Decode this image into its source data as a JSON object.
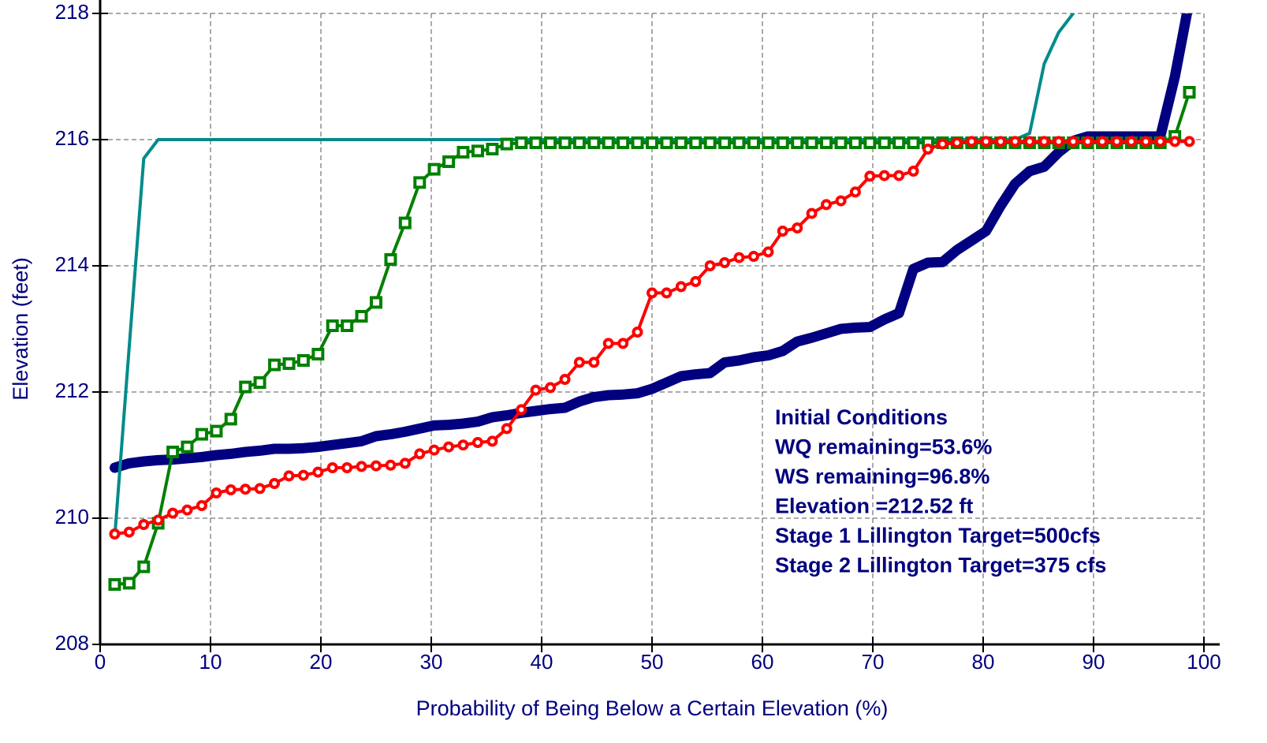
{
  "chart_data": {
    "type": "line",
    "xlabel": "Probability of Being Below a Certain Elevation (%)",
    "ylabel": "Elevation (feet)",
    "annotations": [
      "Initial Conditions",
      "WQ remaining=53.6%",
      "WS remaining=96.8%",
      "Elevation =212.52 ft",
      "Stage 1 Lillington Target=500cfs",
      "Stage 2 Lillington Target=375 cfs"
    ],
    "xlim": [
      0,
      100
    ],
    "xticks": [
      0,
      10,
      20,
      30,
      40,
      50,
      60,
      70,
      80,
      90,
      100
    ],
    "ylim": [
      208,
      218
    ],
    "yticks": [
      208,
      210,
      212,
      214,
      216,
      218
    ],
    "grid": true,
    "x": [
      1.32,
      2.63,
      3.95,
      5.26,
      6.58,
      7.89,
      9.21,
      10.53,
      11.84,
      13.16,
      14.47,
      15.79,
      17.11,
      18.42,
      19.74,
      21.05,
      22.37,
      23.68,
      25,
      26.32,
      27.63,
      28.95,
      30.26,
      31.58,
      32.89,
      34.21,
      35.53,
      36.84,
      38.16,
      39.47,
      40.79,
      42.11,
      43.42,
      44.74,
      46.05,
      47.37,
      48.68,
      50,
      51.32,
      52.63,
      53.95,
      55.26,
      56.58,
      57.89,
      59.21,
      60.53,
      61.84,
      63.16,
      64.47,
      65.79,
      67.11,
      68.42,
      69.74,
      71.05,
      72.37,
      73.68,
      75,
      76.32,
      77.63,
      78.95,
      80.26,
      81.58,
      82.89,
      84.21,
      85.53,
      86.84,
      88.16,
      89.47,
      90.79,
      92.11,
      93.42,
      94.74,
      96.05,
      97.37,
      98.68
    ],
    "series": [
      {
        "color": "#000080",
        "line_width": 13,
        "marker": null,
        "values": [
          210.8,
          210.87,
          210.9,
          210.92,
          210.93,
          210.95,
          210.97,
          211.0,
          211.02,
          211.05,
          211.07,
          211.1,
          211.1,
          211.11,
          211.13,
          211.16,
          211.19,
          211.22,
          211.3,
          211.33,
          211.37,
          211.42,
          211.47,
          211.48,
          211.5,
          211.53,
          211.6,
          211.63,
          211.67,
          211.7,
          211.73,
          211.75,
          211.85,
          211.92,
          211.95,
          211.96,
          211.98,
          212.05,
          212.15,
          212.25,
          212.28,
          212.3,
          212.47,
          212.5,
          212.55,
          212.58,
          212.65,
          212.8,
          212.86,
          212.93,
          213.0,
          213.02,
          213.03,
          213.15,
          213.25,
          213.95,
          214.05,
          214.06,
          214.25,
          214.4,
          214.55,
          214.95,
          215.3,
          215.5,
          215.57,
          215.8,
          215.98,
          216.05,
          216.05,
          216.05,
          216.05,
          216.05,
          216.05,
          217.0,
          218.2
        ]
      },
      {
        "color": "#008b8b",
        "line_width": 4,
        "marker": null,
        "values": [
          209.7,
          212.7,
          215.7,
          216,
          216,
          216,
          216,
          216,
          216,
          216,
          216,
          216,
          216,
          216,
          216,
          216,
          216,
          216,
          216,
          216,
          216,
          216,
          216,
          216,
          216,
          216,
          216,
          216,
          216,
          216,
          216,
          216,
          216,
          216,
          216,
          216,
          216,
          216,
          216,
          216,
          216,
          216,
          216,
          216,
          216,
          216,
          216,
          216,
          216,
          216,
          216,
          216,
          216,
          216,
          216,
          216,
          216,
          216,
          216,
          216,
          216,
          216,
          216,
          216.1,
          217.2,
          217.7,
          218,
          null,
          null,
          null,
          null,
          null,
          null,
          null,
          null
        ]
      },
      {
        "color": "#008000",
        "line_width": 4,
        "marker": "square",
        "values": [
          208.95,
          208.97,
          209.23,
          209.92,
          211.05,
          211.13,
          211.33,
          211.38,
          211.57,
          212.08,
          212.15,
          212.43,
          212.45,
          212.5,
          212.6,
          213.05,
          213.05,
          213.2,
          213.42,
          214.1,
          214.68,
          215.32,
          215.53,
          215.65,
          215.8,
          215.82,
          215.85,
          215.93,
          215.95,
          215.95,
          215.95,
          215.95,
          215.95,
          215.95,
          215.95,
          215.95,
          215.95,
          215.95,
          215.95,
          215.95,
          215.95,
          215.95,
          215.95,
          215.95,
          215.95,
          215.95,
          215.95,
          215.95,
          215.95,
          215.95,
          215.95,
          215.95,
          215.95,
          215.95,
          215.95,
          215.95,
          215.95,
          215.95,
          215.95,
          215.95,
          215.95,
          215.95,
          215.95,
          215.95,
          215.95,
          215.95,
          215.95,
          215.95,
          215.95,
          215.95,
          215.95,
          215.95,
          215.95,
          216.05,
          216.75
        ]
      },
      {
        "color": "#ff0000",
        "line_width": 4,
        "marker": "circle",
        "values": [
          209.75,
          209.78,
          209.9,
          209.97,
          210.08,
          210.13,
          210.2,
          210.4,
          210.45,
          210.46,
          210.47,
          210.55,
          210.67,
          210.68,
          210.73,
          210.8,
          210.8,
          210.82,
          210.83,
          210.84,
          210.87,
          211.02,
          211.08,
          211.13,
          211.16,
          211.2,
          211.22,
          211.42,
          211.72,
          212.03,
          212.07,
          212.2,
          212.47,
          212.47,
          212.77,
          212.77,
          212.95,
          213.57,
          213.57,
          213.67,
          213.75,
          214.0,
          214.05,
          214.13,
          214.15,
          214.22,
          214.55,
          214.6,
          214.83,
          214.97,
          215.03,
          215.17,
          215.42,
          215.43,
          215.43,
          215.5,
          215.85,
          215.93,
          215.95,
          215.97,
          215.97,
          215.97,
          215.97,
          215.97,
          215.97,
          215.97,
          215.97,
          215.97,
          215.97,
          215.97,
          215.97,
          215.97,
          215.97,
          215.97,
          215.97
        ]
      }
    ]
  }
}
